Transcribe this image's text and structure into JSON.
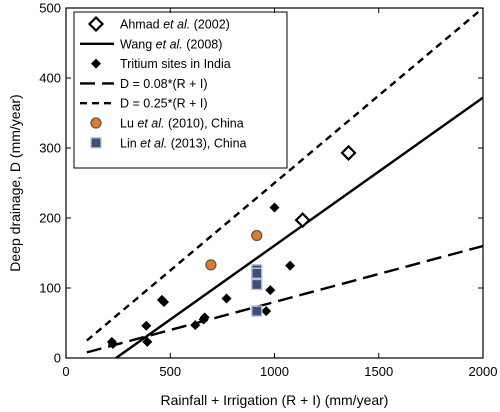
{
  "chart_data": {
    "type": "scatter",
    "xlabel": "Rainfall + Irrigation (R + I) (mm/year)",
    "ylabel": "Deep drainage, D (mm/year)",
    "xlim": [
      0,
      2000
    ],
    "ylim": [
      0,
      500
    ],
    "xticks": [
      0,
      500,
      1000,
      1500,
      2000
    ],
    "yticks": [
      0,
      100,
      200,
      300,
      400,
      500
    ],
    "grid": false,
    "legend_position": "top-left",
    "series": [
      {
        "name_parts": [
          "Ahmad ",
          "et al.",
          " (2002)"
        ],
        "name_italic": [
          false,
          true,
          false
        ],
        "kind": "points",
        "marker": "diamond-open",
        "color": "#000000",
        "points": [
          [
            1135,
            197
          ],
          [
            1355,
            293
          ]
        ]
      },
      {
        "name_parts": [
          "Wang ",
          "et al.",
          " (2008)"
        ],
        "name_italic": [
          false,
          true,
          false
        ],
        "kind": "line",
        "style": "solid",
        "color": "#000000",
        "points": [
          [
            240,
            0
          ],
          [
            2000,
            372
          ]
        ]
      },
      {
        "name_parts": [
          "Tritium sites in India"
        ],
        "name_italic": [
          false
        ],
        "kind": "points",
        "marker": "diamond-filled",
        "color": "#000000",
        "points": [
          [
            220,
            23
          ],
          [
            225,
            20
          ],
          [
            385,
            46
          ],
          [
            390,
            23
          ],
          [
            460,
            83
          ],
          [
            470,
            80
          ],
          [
            620,
            47
          ],
          [
            660,
            55
          ],
          [
            665,
            58
          ],
          [
            770,
            85
          ],
          [
            960,
            67
          ],
          [
            980,
            97
          ],
          [
            1000,
            215
          ],
          [
            1075,
            132
          ]
        ]
      },
      {
        "name_parts": [
          "D = 0.08*(R + I)"
        ],
        "name_italic": [
          false
        ],
        "kind": "line",
        "style": "long-dash",
        "color": "#000000",
        "points": [
          [
            100,
            8
          ],
          [
            2000,
            160
          ]
        ]
      },
      {
        "name_parts": [
          "D = 0.25*(R + I)"
        ],
        "name_italic": [
          false
        ],
        "kind": "line",
        "style": "short-dash",
        "color": "#000000",
        "points": [
          [
            100,
            25
          ],
          [
            2000,
            500
          ]
        ]
      },
      {
        "name_parts": [
          "Lu ",
          "et al.",
          " (2010), China"
        ],
        "name_italic": [
          false,
          true,
          false
        ],
        "kind": "points",
        "marker": "circle",
        "color": "#e07b29",
        "points": [
          [
            695,
            133
          ],
          [
            915,
            175
          ]
        ]
      },
      {
        "name_parts": [
          "Lin ",
          "et al.",
          " (2013), China"
        ],
        "name_italic": [
          false,
          true,
          false
        ],
        "kind": "points",
        "marker": "square",
        "color": "#3b4f7a",
        "points": [
          [
            915,
            126
          ],
          [
            915,
            121
          ],
          [
            915,
            105
          ],
          [
            915,
            67
          ]
        ]
      }
    ]
  }
}
